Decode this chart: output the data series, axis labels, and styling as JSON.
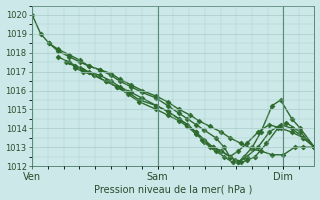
{
  "title": "Pression niveau de la mer( hPa )",
  "bg_color": "#cce8e8",
  "grid_color": "#aacccc",
  "line_color": "#2d6a2d",
  "marker": "D",
  "markersize": 2.5,
  "linewidth": 1.0,
  "ylim": [
    1012,
    1020.5
  ],
  "yticks": [
    1012,
    1013,
    1014,
    1015,
    1016,
    1017,
    1018,
    1019,
    1020
  ],
  "xtick_labels": [
    "Ven",
    "Sam",
    "Dim"
  ],
  "xtick_positions": [
    0.0,
    0.4444,
    0.8889
  ],
  "vline_positions": [
    0.0,
    0.4444,
    0.8889
  ],
  "series": [
    {
      "x": [
        0.0,
        0.03,
        0.06,
        0.09,
        0.13,
        0.17,
        0.2,
        0.24,
        0.28,
        0.31,
        0.35,
        0.39,
        0.44,
        0.48,
        0.52,
        0.56,
        0.59,
        0.63,
        0.67,
        0.7,
        0.74,
        0.78,
        0.81,
        0.85,
        0.89,
        0.93,
        0.96,
        1.0
      ],
      "y": [
        1020.0,
        1019.0,
        1018.5,
        1018.1,
        1017.8,
        1017.5,
        1017.3,
        1017.1,
        1016.9,
        1016.6,
        1016.3,
        1016.0,
        1015.7,
        1015.4,
        1015.0,
        1014.7,
        1014.4,
        1014.1,
        1013.8,
        1013.5,
        1013.2,
        1012.9,
        1012.8,
        1012.6,
        1012.6,
        1013.0,
        1013.0,
        1013.0
      ]
    },
    {
      "x": [
        0.06,
        0.09,
        0.13,
        0.17,
        0.2,
        0.24,
        0.28,
        0.31,
        0.35,
        0.39,
        0.44,
        0.48,
        0.52,
        0.55,
        0.58,
        0.61,
        0.65,
        0.68,
        0.7,
        0.72,
        0.74,
        0.76,
        0.79,
        0.83,
        0.87,
        0.9,
        0.95,
        1.0
      ],
      "y": [
        1018.5,
        1018.2,
        1017.9,
        1017.6,
        1017.3,
        1017.1,
        1016.8,
        1016.5,
        1016.2,
        1015.9,
        1015.6,
        1015.2,
        1014.8,
        1014.5,
        1014.2,
        1013.9,
        1013.5,
        1013.0,
        1012.5,
        1012.3,
        1012.2,
        1012.3,
        1012.5,
        1013.2,
        1014.0,
        1014.3,
        1013.8,
        1013.0
      ]
    },
    {
      "x": [
        0.09,
        0.13,
        0.17,
        0.2,
        0.24,
        0.28,
        0.31,
        0.35,
        0.39,
        0.44,
        0.48,
        0.52,
        0.55,
        0.58,
        0.6,
        0.63,
        0.65,
        0.68,
        0.71,
        0.73,
        0.75,
        0.78,
        0.81,
        0.85,
        0.88,
        0.92,
        0.95,
        1.0
      ],
      "y": [
        1017.8,
        1017.5,
        1017.2,
        1017.0,
        1016.8,
        1016.5,
        1016.2,
        1015.9,
        1015.6,
        1015.2,
        1014.9,
        1014.5,
        1014.2,
        1013.8,
        1013.4,
        1013.0,
        1012.8,
        1012.5,
        1012.2,
        1012.2,
        1012.5,
        1013.0,
        1013.8,
        1015.2,
        1015.5,
        1014.5,
        1014.0,
        1013.0
      ]
    },
    {
      "x": [
        0.12,
        0.15,
        0.18,
        0.22,
        0.26,
        0.3,
        0.34,
        0.38,
        0.44,
        0.48,
        0.52,
        0.55,
        0.58,
        0.61,
        0.64,
        0.67,
        0.7,
        0.73,
        0.76,
        0.8,
        0.84,
        0.88,
        0.92,
        0.96,
        1.0
      ],
      "y": [
        1017.5,
        1017.3,
        1017.1,
        1016.8,
        1016.5,
        1016.2,
        1015.9,
        1015.5,
        1015.2,
        1014.9,
        1014.5,
        1014.2,
        1013.8,
        1013.4,
        1013.0,
        1012.8,
        1012.5,
        1012.2,
        1012.5,
        1013.0,
        1013.8,
        1014.2,
        1014.0,
        1013.5,
        1013.0
      ]
    },
    {
      "x": [
        0.15,
        0.18,
        0.22,
        0.26,
        0.3,
        0.34,
        0.38,
        0.44,
        0.48,
        0.52,
        0.55,
        0.58,
        0.61,
        0.64,
        0.67,
        0.7,
        0.73,
        0.76,
        0.8,
        0.84,
        0.88,
        0.92,
        0.96,
        1.0
      ],
      "y": [
        1017.2,
        1017.0,
        1016.8,
        1016.5,
        1016.2,
        1015.8,
        1015.4,
        1015.0,
        1014.7,
        1014.4,
        1014.1,
        1013.7,
        1013.3,
        1013.0,
        1012.8,
        1012.5,
        1012.8,
        1013.2,
        1013.8,
        1014.2,
        1014.0,
        1013.8,
        1013.5,
        1013.0
      ]
    }
  ]
}
